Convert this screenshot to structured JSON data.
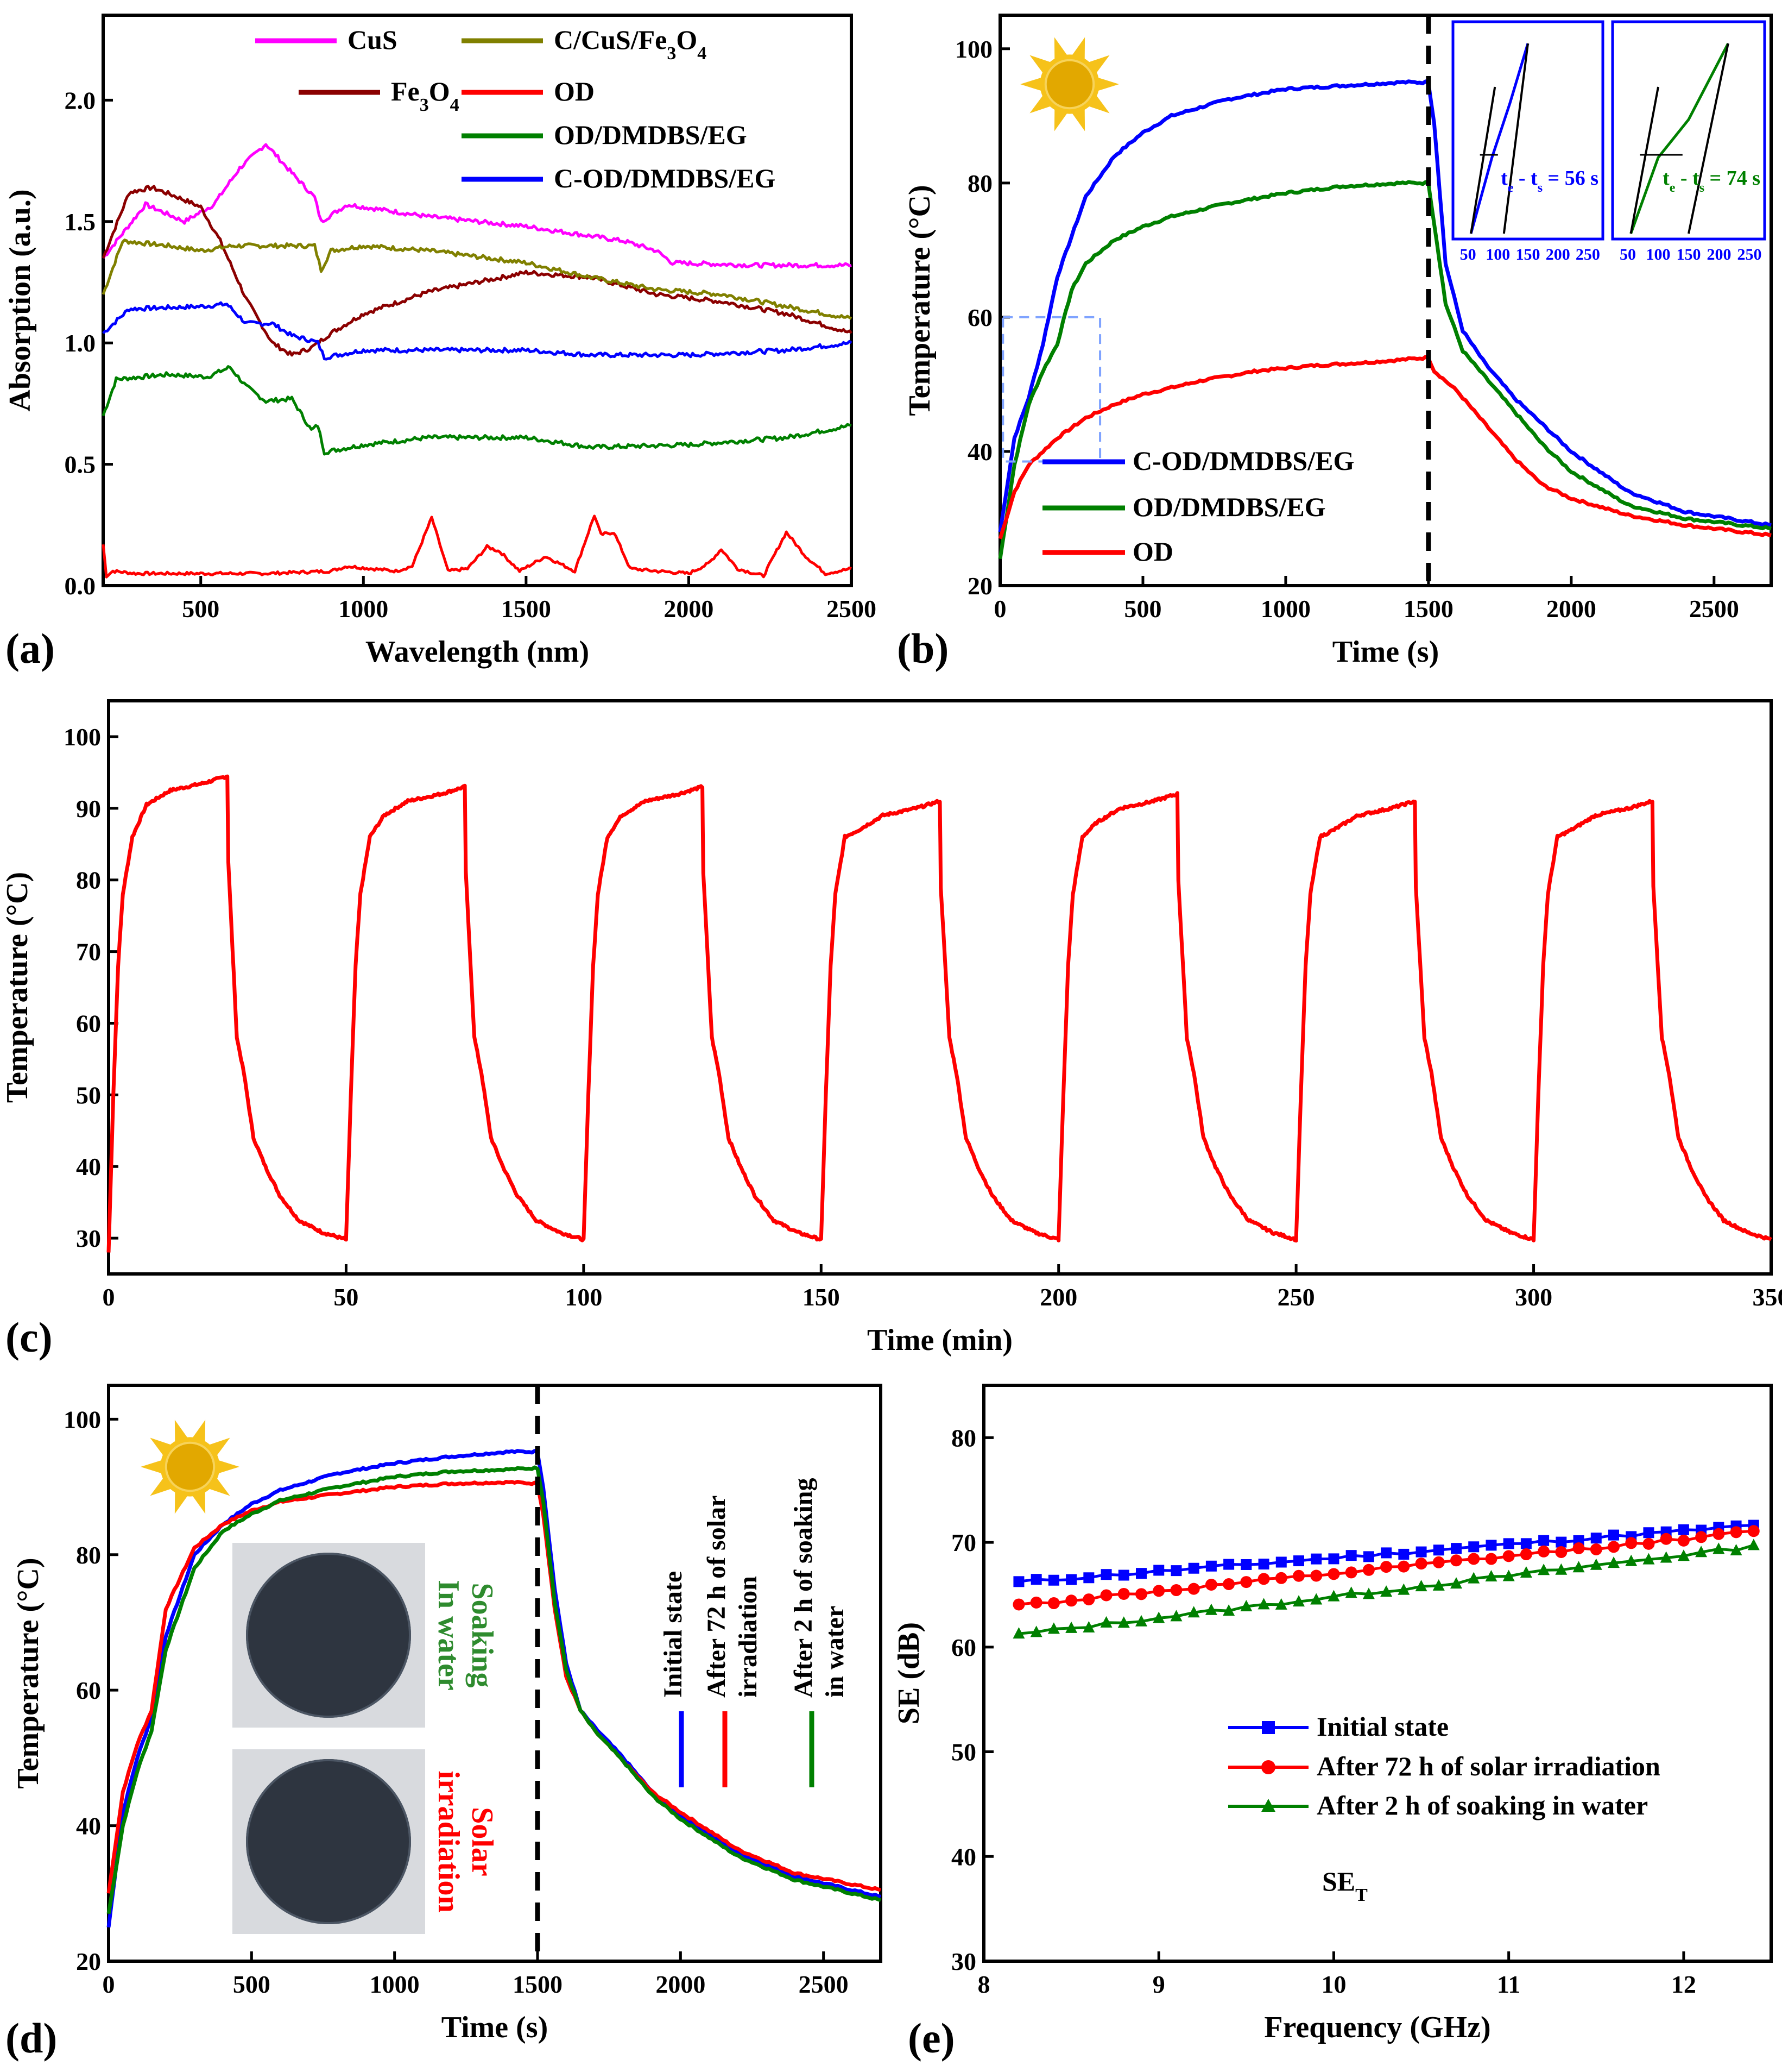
{
  "panels": [
    {
      "id": "a",
      "label": "(a)"
    },
    {
      "id": "b",
      "label": "(b)"
    },
    {
      "id": "c",
      "label": "(c)"
    },
    {
      "id": "d",
      "label": "(d)"
    },
    {
      "id": "e",
      "label": "(e)"
    }
  ],
  "chart_data": [
    {
      "panel": "a",
      "type": "line",
      "xlabel": "Wavelength (nm)",
      "ylabel": "Absorption (a.u.)",
      "xlim": [
        200,
        2500
      ],
      "ylim": [
        0,
        2.35
      ],
      "xticks": [
        500,
        1000,
        1500,
        2000,
        2500
      ],
      "yticks": [
        0.0,
        0.5,
        1.0,
        1.5,
        2.0
      ],
      "legend_columns": 2,
      "series": [
        {
          "name": "CuS",
          "legend_html": "CuS",
          "color": "#ff00ff",
          "x": [
            200,
            330,
            450,
            540,
            620,
            700,
            780,
            850,
            870,
            950,
            1200,
            1500,
            1800,
            1900,
            1950,
            2200,
            2500
          ],
          "y": [
            1.35,
            1.57,
            1.5,
            1.57,
            1.72,
            1.82,
            1.7,
            1.6,
            1.5,
            1.57,
            1.52,
            1.48,
            1.42,
            1.38,
            1.33,
            1.32,
            1.32
          ]
        },
        {
          "name": "Fe3O4",
          "legend_html": "Fe<tspan baseline-shift=\"sub\" font-size=\"34\">3</tspan>O<tspan baseline-shift=\"sub\" font-size=\"34\">4</tspan>",
          "color": "#8b0000",
          "x": [
            200,
            280,
            350,
            430,
            500,
            560,
            640,
            720,
            780,
            840,
            900,
            1000,
            1200,
            1500,
            1700,
            1900,
            2100,
            2300,
            2500
          ],
          "y": [
            1.35,
            1.62,
            1.64,
            1.6,
            1.56,
            1.42,
            1.18,
            1.0,
            0.95,
            0.98,
            1.04,
            1.12,
            1.21,
            1.29,
            1.27,
            1.2,
            1.17,
            1.12,
            1.04
          ]
        },
        {
          "name": "C/CuS/Fe3O4",
          "legend_html": "C/CuS/Fe<tspan baseline-shift=\"sub\" font-size=\"34\">3</tspan>O<tspan baseline-shift=\"sub\" font-size=\"34\">4</tspan>",
          "color": "#808000",
          "x": [
            200,
            260,
            400,
            500,
            600,
            700,
            800,
            850,
            870,
            900,
            1000,
            1200,
            1500,
            1700,
            1900,
            2100,
            2300,
            2500
          ],
          "y": [
            1.2,
            1.42,
            1.4,
            1.38,
            1.4,
            1.4,
            1.4,
            1.4,
            1.3,
            1.38,
            1.4,
            1.38,
            1.33,
            1.27,
            1.22,
            1.2,
            1.15,
            1.1
          ]
        },
        {
          "name": "OD",
          "legend_html": "OD",
          "color": "#ff0000",
          "x": [
            200,
            210,
            230,
            300,
            500,
            700,
            900,
            950,
            1100,
            1150,
            1210,
            1260,
            1320,
            1380,
            1420,
            1480,
            1560,
            1650,
            1710,
            1730,
            1770,
            1820,
            1900,
            2000,
            2060,
            2100,
            2150,
            2230,
            2300,
            2360,
            2420,
            2500
          ],
          "y": [
            0.17,
            0.04,
            0.06,
            0.05,
            0.05,
            0.05,
            0.06,
            0.08,
            0.06,
            0.08,
            0.28,
            0.06,
            0.07,
            0.16,
            0.14,
            0.06,
            0.12,
            0.06,
            0.29,
            0.21,
            0.22,
            0.07,
            0.06,
            0.05,
            0.09,
            0.15,
            0.07,
            0.04,
            0.22,
            0.12,
            0.05,
            0.07
          ]
        },
        {
          "name": "OD/DMDBS/EG",
          "legend_html": "OD/DMDBS/EG",
          "color": "#008000",
          "x": [
            200,
            240,
            400,
            520,
            590,
            640,
            700,
            780,
            840,
            860,
            880,
            1000,
            1200,
            1500,
            1700,
            2000,
            2300,
            2500
          ],
          "y": [
            0.7,
            0.85,
            0.87,
            0.86,
            0.9,
            0.82,
            0.76,
            0.77,
            0.64,
            0.66,
            0.55,
            0.58,
            0.61,
            0.61,
            0.57,
            0.58,
            0.61,
            0.66
          ]
        },
        {
          "name": "C-OD/DMDBS/EG",
          "legend_html": "C-OD/DMDBS/EG",
          "color": "#0000ff",
          "x": [
            200,
            280,
            500,
            580,
            640,
            720,
            780,
            840,
            860,
            880,
            1000,
            1200,
            1500,
            1700,
            2000,
            2300,
            2500
          ],
          "y": [
            1.04,
            1.14,
            1.15,
            1.16,
            1.08,
            1.08,
            1.03,
            1.01,
            1.0,
            0.94,
            0.97,
            0.97,
            0.97,
            0.95,
            0.95,
            0.97,
            1.0
          ]
        }
      ]
    },
    {
      "panel": "b",
      "type": "line",
      "xlabel": "Time (s)",
      "ylabel": "Temperature (°C)",
      "xlim": [
        0,
        2700
      ],
      "ylim": [
        20,
        105
      ],
      "xticks": [
        0,
        500,
        1000,
        1500,
        2000,
        2500
      ],
      "yticks": [
        20,
        40,
        60,
        80,
        100
      ],
      "light_off_time": 1500,
      "series": [
        {
          "name": "C-OD/DMDBS/EG",
          "color": "#0000ff",
          "x": [
            0,
            50,
            100,
            150,
            200,
            300,
            400,
            500,
            600,
            800,
            1000,
            1200,
            1400,
            1500,
            1520,
            1560,
            1620,
            1700,
            1800,
            1900,
            2000,
            2200,
            2400,
            2700
          ],
          "y": [
            28,
            42,
            48,
            56,
            66,
            78,
            84,
            87.5,
            90,
            92.5,
            94,
            94.5,
            95,
            95,
            89,
            68,
            58,
            53,
            48,
            44,
            40,
            34,
            31,
            29
          ]
        },
        {
          "name": "OD/DMDBS/EG",
          "color": "#008000",
          "x": [
            0,
            50,
            100,
            150,
            200,
            250,
            300,
            400,
            500,
            600,
            800,
            1000,
            1200,
            1400,
            1500,
            1520,
            1560,
            1620,
            1700,
            1800,
            1900,
            2000,
            2200,
            2400,
            2700
          ],
          "y": [
            24,
            38,
            47,
            52,
            56,
            64,
            68,
            71.5,
            73.5,
            75,
            77,
            78.5,
            79.5,
            80,
            80,
            74,
            62,
            55,
            51,
            46,
            41,
            37,
            32,
            30,
            28.5
          ]
        },
        {
          "name": "OD",
          "color": "#ff0000",
          "x": [
            0,
            50,
            100,
            200,
            300,
            400,
            500,
            700,
            900,
            1100,
            1300,
            1500,
            1520,
            1600,
            1700,
            1800,
            1900,
            2000,
            2200,
            2400,
            2700
          ],
          "y": [
            27,
            34,
            38,
            42,
            45,
            47,
            48.5,
            50.5,
            52,
            52.8,
            53.3,
            54,
            52,
            49,
            44,
            39,
            35,
            33,
            30.5,
            29,
            27.5
          ]
        }
      ],
      "insets": [
        {
          "label_html": "t<tspan baseline-shift=\"sub\" font-size=\"24\">e</tspan> - t<tspan baseline-shift=\"sub\" font-size=\"24\">s</tspan> = 56 s",
          "color": "#0000ff",
          "xticks": [
            50,
            100,
            150,
            200,
            250
          ],
          "xlim": [
            25,
            275
          ]
        },
        {
          "label_html": "t<tspan baseline-shift=\"sub\" font-size=\"24\">e</tspan> - t<tspan baseline-shift=\"sub\" font-size=\"24\">s</tspan> = 74 s",
          "color": "#008000",
          "xticks": [
            50,
            100,
            150,
            200,
            250
          ],
          "xlim": [
            25,
            275
          ]
        }
      ]
    },
    {
      "panel": "c",
      "type": "line",
      "xlabel": "Time (min)",
      "ylabel": "Temperature (°C)",
      "xlim": [
        0,
        350
      ],
      "ylim": [
        25,
        105
      ],
      "xticks": [
        0,
        50,
        100,
        150,
        200,
        250,
        300,
        350
      ],
      "yticks": [
        30,
        40,
        50,
        60,
        70,
        80,
        90,
        100
      ],
      "cycle_period_min": 50,
      "heating_duration_min": 25,
      "cycle_peaks": [
        94.5,
        93,
        93,
        91,
        92,
        91,
        91
      ],
      "series": [
        {
          "name": "",
          "color": "#ff0000"
        }
      ]
    },
    {
      "panel": "d",
      "type": "line",
      "xlabel": "Time (s)",
      "ylabel": "Temperature (°C)",
      "xlim": [
        0,
        2700
      ],
      "ylim": [
        20,
        105
      ],
      "xticks": [
        0,
        500,
        1000,
        1500,
        2000,
        2500
      ],
      "yticks": [
        20,
        40,
        60,
        80,
        100
      ],
      "light_off_time": 1500,
      "photo_labels": {
        "top": [
          "Soaking",
          "In water"
        ],
        "bottom": [
          "Solar",
          "irradiation"
        ]
      },
      "series": [
        {
          "name": "Initial state",
          "legend_lines": [
            "Initial state"
          ],
          "color": "#0000ff",
          "x": [
            0,
            50,
            100,
            150,
            200,
            300,
            400,
            500,
            600,
            800,
            1000,
            1200,
            1400,
            1500,
            1520,
            1560,
            1600,
            1650,
            1700,
            1800,
            1900,
            2000,
            2200,
            2400,
            2700
          ],
          "y": [
            25,
            42,
            50,
            56,
            68,
            80,
            84.5,
            87.5,
            89.5,
            92,
            93.5,
            94.5,
            95.2,
            95.2,
            90,
            75,
            64,
            57,
            54.5,
            50,
            45,
            41.5,
            36,
            32.5,
            29.5
          ]
        },
        {
          "name": "After 72 h of solar irradiation",
          "legend_lines": [
            "After 72 h of  solar",
            "irradiation"
          ],
          "color": "#ff0000",
          "x": [
            0,
            50,
            100,
            150,
            200,
            300,
            400,
            500,
            600,
            800,
            1000,
            1200,
            1400,
            1500,
            1520,
            1560,
            1600,
            1650,
            1700,
            1800,
            1900,
            2000,
            2200,
            2400,
            2700
          ],
          "y": [
            30,
            45,
            52,
            57,
            72,
            81,
            84.5,
            86.5,
            87.8,
            89,
            90,
            90.5,
            90.7,
            90.5,
            86,
            72,
            62,
            57,
            54,
            49.5,
            45,
            42,
            36.5,
            33,
            30.5
          ]
        },
        {
          "name": "After 2 h of soaking in water",
          "legend_lines": [
            "After 2 h of soaking",
            "in water"
          ],
          "color": "#008000",
          "x": [
            0,
            50,
            100,
            150,
            200,
            300,
            400,
            500,
            600,
            800,
            1000,
            1200,
            1400,
            1500,
            1520,
            1560,
            1600,
            1650,
            1700,
            1800,
            1900,
            2000,
            2200,
            2400,
            2700
          ],
          "y": [
            27,
            40,
            48,
            54,
            66,
            78,
            83.5,
            86,
            88,
            90,
            91.5,
            92.3,
            92.6,
            92.8,
            88,
            73,
            63,
            57,
            54,
            49.5,
            44.5,
            41,
            35.5,
            32,
            29
          ]
        }
      ]
    },
    {
      "panel": "e",
      "type": "line",
      "xlabel": "Frequency (GHz)",
      "ylabel": "SE (dB)",
      "xlim": [
        8,
        12.5
      ],
      "ylim": [
        30,
        85
      ],
      "xticks": [
        8,
        9,
        10,
        11,
        12
      ],
      "yticks": [
        30,
        40,
        50,
        60,
        70,
        80
      ],
      "annotation_html": "SE<tspan baseline-shift=\"sub\" font-size=\"34\">T</tspan>",
      "series": [
        {
          "name": "Initial state",
          "color": "#0000ff",
          "marker": "square",
          "x_start": 8.2,
          "x_step": 0.1,
          "count": 43,
          "y_start": 66.2,
          "y_end": 71.6
        },
        {
          "name": "After 72 h of  solar irradiation",
          "color": "#ff0000",
          "marker": "circle",
          "x_start": 8.2,
          "x_step": 0.1,
          "count": 43,
          "y_start": 64.0,
          "y_end": 71.0
        },
        {
          "name": "After 2 h of soaking in water",
          "color": "#008000",
          "marker": "triangle",
          "x_start": 8.2,
          "x_step": 0.1,
          "count": 43,
          "y_start": 61.2,
          "y_end": 69.6
        }
      ]
    }
  ]
}
